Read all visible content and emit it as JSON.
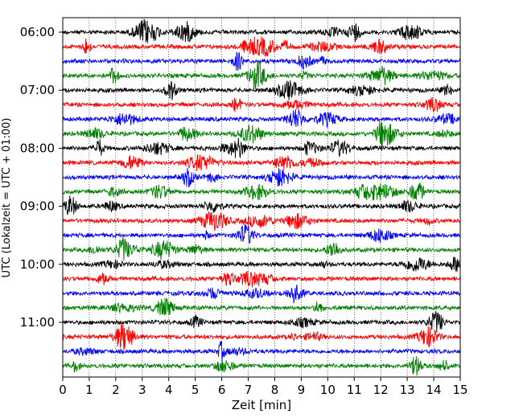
{
  "chart_data": {
    "type": "line",
    "title": "",
    "xlabel": "Zeit  [min]",
    "ylabel": "UTC (Lokalzeit = UTC + 01:00)",
    "xlim": [
      0,
      15
    ],
    "x_ticks": [
      "0",
      "1",
      "2",
      "3",
      "4",
      "5",
      "6",
      "7",
      "8",
      "9",
      "10",
      "11",
      "12",
      "13",
      "14",
      "15"
    ],
    "y_ticks": [
      "06:00",
      "07:00",
      "08:00",
      "09:00",
      "10:00",
      "11:00"
    ],
    "grid": "vertical dotted at each minute",
    "trace_count": 24,
    "trace_interval_minutes": 15,
    "trace_start": "06:00",
    "trace_colors": [
      "#000000",
      "#ff0000",
      "#0000ff",
      "#008000"
    ],
    "series": [
      {
        "start": "06:00",
        "color": "#000000"
      },
      {
        "start": "06:15",
        "color": "#ff0000"
      },
      {
        "start": "06:30",
        "color": "#0000ff"
      },
      {
        "start": "06:45",
        "color": "#008000"
      },
      {
        "start": "07:00",
        "color": "#000000"
      },
      {
        "start": "07:15",
        "color": "#ff0000"
      },
      {
        "start": "07:30",
        "color": "#0000ff"
      },
      {
        "start": "07:45",
        "color": "#008000"
      },
      {
        "start": "08:00",
        "color": "#000000"
      },
      {
        "start": "08:15",
        "color": "#ff0000"
      },
      {
        "start": "08:30",
        "color": "#0000ff"
      },
      {
        "start": "08:45",
        "color": "#008000"
      },
      {
        "start": "09:00",
        "color": "#000000"
      },
      {
        "start": "09:15",
        "color": "#ff0000"
      },
      {
        "start": "09:30",
        "color": "#0000ff"
      },
      {
        "start": "09:45",
        "color": "#008000"
      },
      {
        "start": "10:00",
        "color": "#000000"
      },
      {
        "start": "10:15",
        "color": "#ff0000"
      },
      {
        "start": "10:30",
        "color": "#0000ff"
      },
      {
        "start": "10:45",
        "color": "#008000"
      },
      {
        "start": "11:00",
        "color": "#000000"
      },
      {
        "start": "11:15",
        "color": "#ff0000"
      },
      {
        "start": "11:30",
        "color": "#0000ff"
      },
      {
        "start": "11:45",
        "color": "#008000"
      }
    ]
  }
}
